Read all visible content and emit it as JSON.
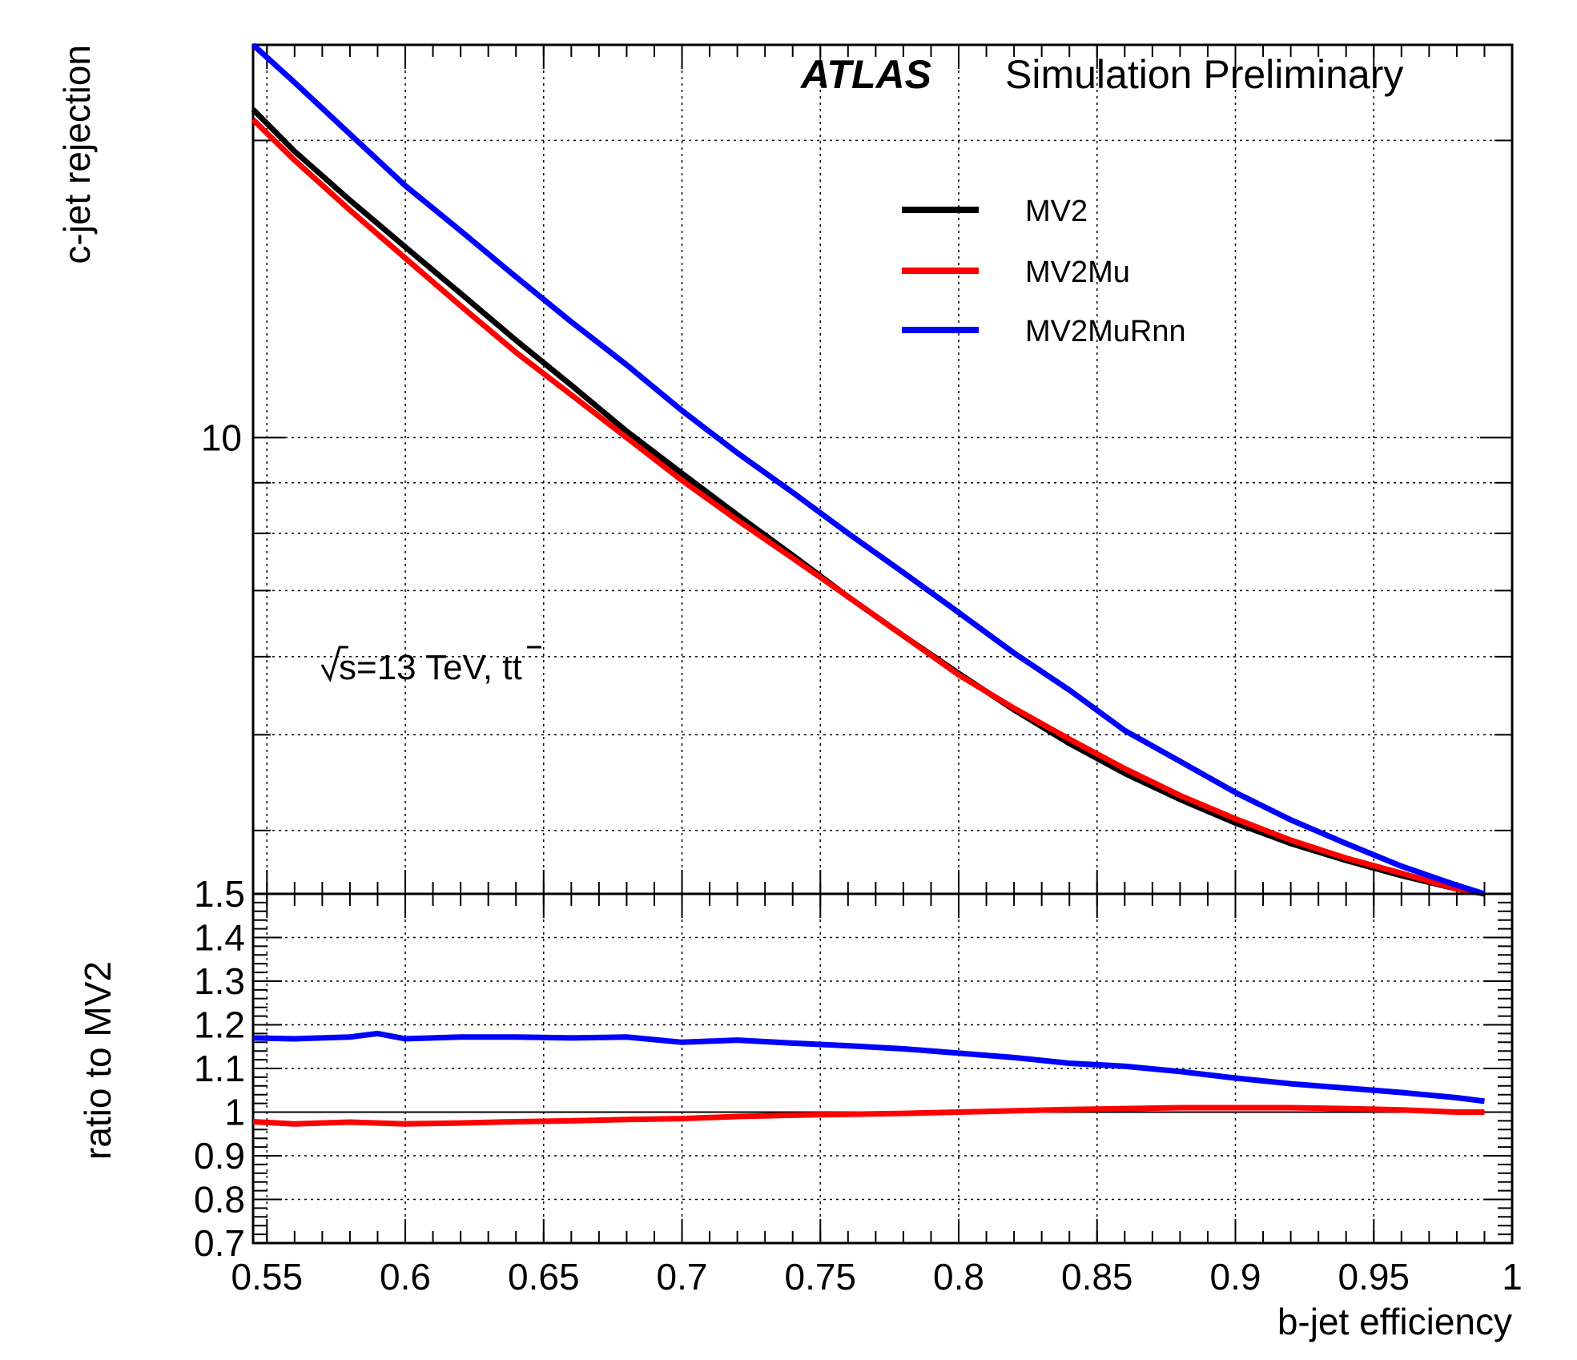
{
  "chart_data": [
    {
      "panel": "main",
      "type": "line",
      "xlabel": "",
      "ylabel": "c-jet rejection",
      "xlim": [
        0.545,
        1.0
      ],
      "ylim": [
        3.45,
        25
      ],
      "yscale": "log",
      "grid": true,
      "yticks": [
        {
          "value": 10,
          "label": "10"
        }
      ],
      "annotations": {
        "experiment": "ATLAS",
        "status": "Simulation Preliminary",
        "energy_prefix": "s=13 TeV, t",
        "energy_suffix": "t"
      },
      "legend": {
        "position": "top-right",
        "entries": [
          "MV2",
          "MV2Mu",
          "MV2MuRnn"
        ]
      },
      "series": [
        {
          "name": "MV2",
          "color": "#000000",
          "x": [
            0.545,
            0.56,
            0.58,
            0.6,
            0.62,
            0.64,
            0.66,
            0.68,
            0.7,
            0.72,
            0.74,
            0.76,
            0.78,
            0.8,
            0.82,
            0.84,
            0.86,
            0.88,
            0.9,
            0.92,
            0.94,
            0.96,
            0.98,
            0.99
          ],
          "y": [
            21.5,
            19.5,
            17.4,
            15.6,
            14.0,
            12.55,
            11.3,
            10.15,
            9.2,
            8.35,
            7.6,
            6.9,
            6.3,
            5.77,
            5.3,
            4.9,
            4.57,
            4.3,
            4.07,
            3.88,
            3.73,
            3.6,
            3.49,
            3.44
          ]
        },
        {
          "name": "MV2Mu",
          "color": "#ff0000",
          "x": [
            0.545,
            0.56,
            0.58,
            0.6,
            0.62,
            0.64,
            0.66,
            0.68,
            0.7,
            0.72,
            0.74,
            0.76,
            0.78,
            0.8,
            0.82,
            0.84,
            0.86,
            0.88,
            0.9,
            0.92,
            0.94,
            0.96,
            0.98,
            0.99
          ],
          "y": [
            21.0,
            19.1,
            17.0,
            15.2,
            13.6,
            12.2,
            11.05,
            10.0,
            9.05,
            8.25,
            7.55,
            6.9,
            6.3,
            5.75,
            5.32,
            4.95,
            4.62,
            4.34,
            4.11,
            3.91,
            3.75,
            3.62,
            3.49,
            3.43
          ]
        },
        {
          "name": "MV2MuRnn",
          "color": "#0000ff",
          "x": [
            0.545,
            0.56,
            0.58,
            0.6,
            0.62,
            0.64,
            0.66,
            0.68,
            0.7,
            0.72,
            0.74,
            0.76,
            0.78,
            0.8,
            0.82,
            0.84,
            0.86,
            0.88,
            0.9,
            0.92,
            0.94,
            0.96,
            0.98,
            0.99
          ],
          "y": [
            25.0,
            22.9,
            20.3,
            18.0,
            16.2,
            14.55,
            13.1,
            11.85,
            10.65,
            9.65,
            8.8,
            8.0,
            7.3,
            6.65,
            6.05,
            5.55,
            5.05,
            4.7,
            4.37,
            4.1,
            3.88,
            3.68,
            3.52,
            3.45
          ]
        }
      ]
    },
    {
      "panel": "ratio",
      "type": "line",
      "xlabel": "b-jet efficiency",
      "ylabel": "ratio to MV2",
      "xlim": [
        0.545,
        1.0
      ],
      "ylim": [
        0.7,
        1.5
      ],
      "grid": true,
      "xticks": [
        {
          "value": 0.55,
          "label": "0.55"
        },
        {
          "value": 0.6,
          "label": "0.6"
        },
        {
          "value": 0.65,
          "label": "0.65"
        },
        {
          "value": 0.7,
          "label": "0.7"
        },
        {
          "value": 0.75,
          "label": "0.75"
        },
        {
          "value": 0.8,
          "label": "0.8"
        },
        {
          "value": 0.85,
          "label": "0.85"
        },
        {
          "value": 0.9,
          "label": "0.9"
        },
        {
          "value": 0.95,
          "label": "0.95"
        },
        {
          "value": 1.0,
          "label": "1"
        }
      ],
      "yticks": [
        {
          "value": 0.7,
          "label": "0.7"
        },
        {
          "value": 0.8,
          "label": "0.8"
        },
        {
          "value": 0.9,
          "label": "0.9"
        },
        {
          "value": 1.0,
          "label": "1"
        },
        {
          "value": 1.1,
          "label": "1.1"
        },
        {
          "value": 1.2,
          "label": "1.2"
        },
        {
          "value": 1.3,
          "label": "1.3"
        },
        {
          "value": 1.4,
          "label": "1.4"
        },
        {
          "value": 1.5,
          "label": "1.5"
        }
      ],
      "reference_line": 1.0,
      "series": [
        {
          "name": "MV2Mu",
          "color": "#ff0000",
          "x": [
            0.545,
            0.56,
            0.58,
            0.6,
            0.62,
            0.64,
            0.66,
            0.68,
            0.7,
            0.72,
            0.74,
            0.76,
            0.78,
            0.8,
            0.82,
            0.84,
            0.86,
            0.88,
            0.9,
            0.92,
            0.94,
            0.96,
            0.98,
            0.99
          ],
          "y": [
            0.978,
            0.973,
            0.977,
            0.973,
            0.975,
            0.978,
            0.98,
            0.983,
            0.985,
            0.99,
            0.993,
            0.995,
            0.997,
            1.0,
            1.003,
            1.006,
            1.008,
            1.01,
            1.01,
            1.01,
            1.008,
            1.005,
            1.0,
            1.0
          ]
        },
        {
          "name": "MV2MuRnn",
          "color": "#0000ff",
          "x": [
            0.545,
            0.56,
            0.58,
            0.59,
            0.6,
            0.62,
            0.64,
            0.66,
            0.68,
            0.7,
            0.72,
            0.74,
            0.76,
            0.78,
            0.8,
            0.82,
            0.84,
            0.86,
            0.88,
            0.9,
            0.92,
            0.94,
            0.96,
            0.98,
            0.99
          ],
          "y": [
            1.17,
            1.168,
            1.172,
            1.18,
            1.168,
            1.172,
            1.172,
            1.17,
            1.172,
            1.16,
            1.165,
            1.158,
            1.152,
            1.145,
            1.135,
            1.125,
            1.112,
            1.105,
            1.093,
            1.078,
            1.065,
            1.055,
            1.045,
            1.033,
            1.025
          ]
        }
      ]
    }
  ]
}
